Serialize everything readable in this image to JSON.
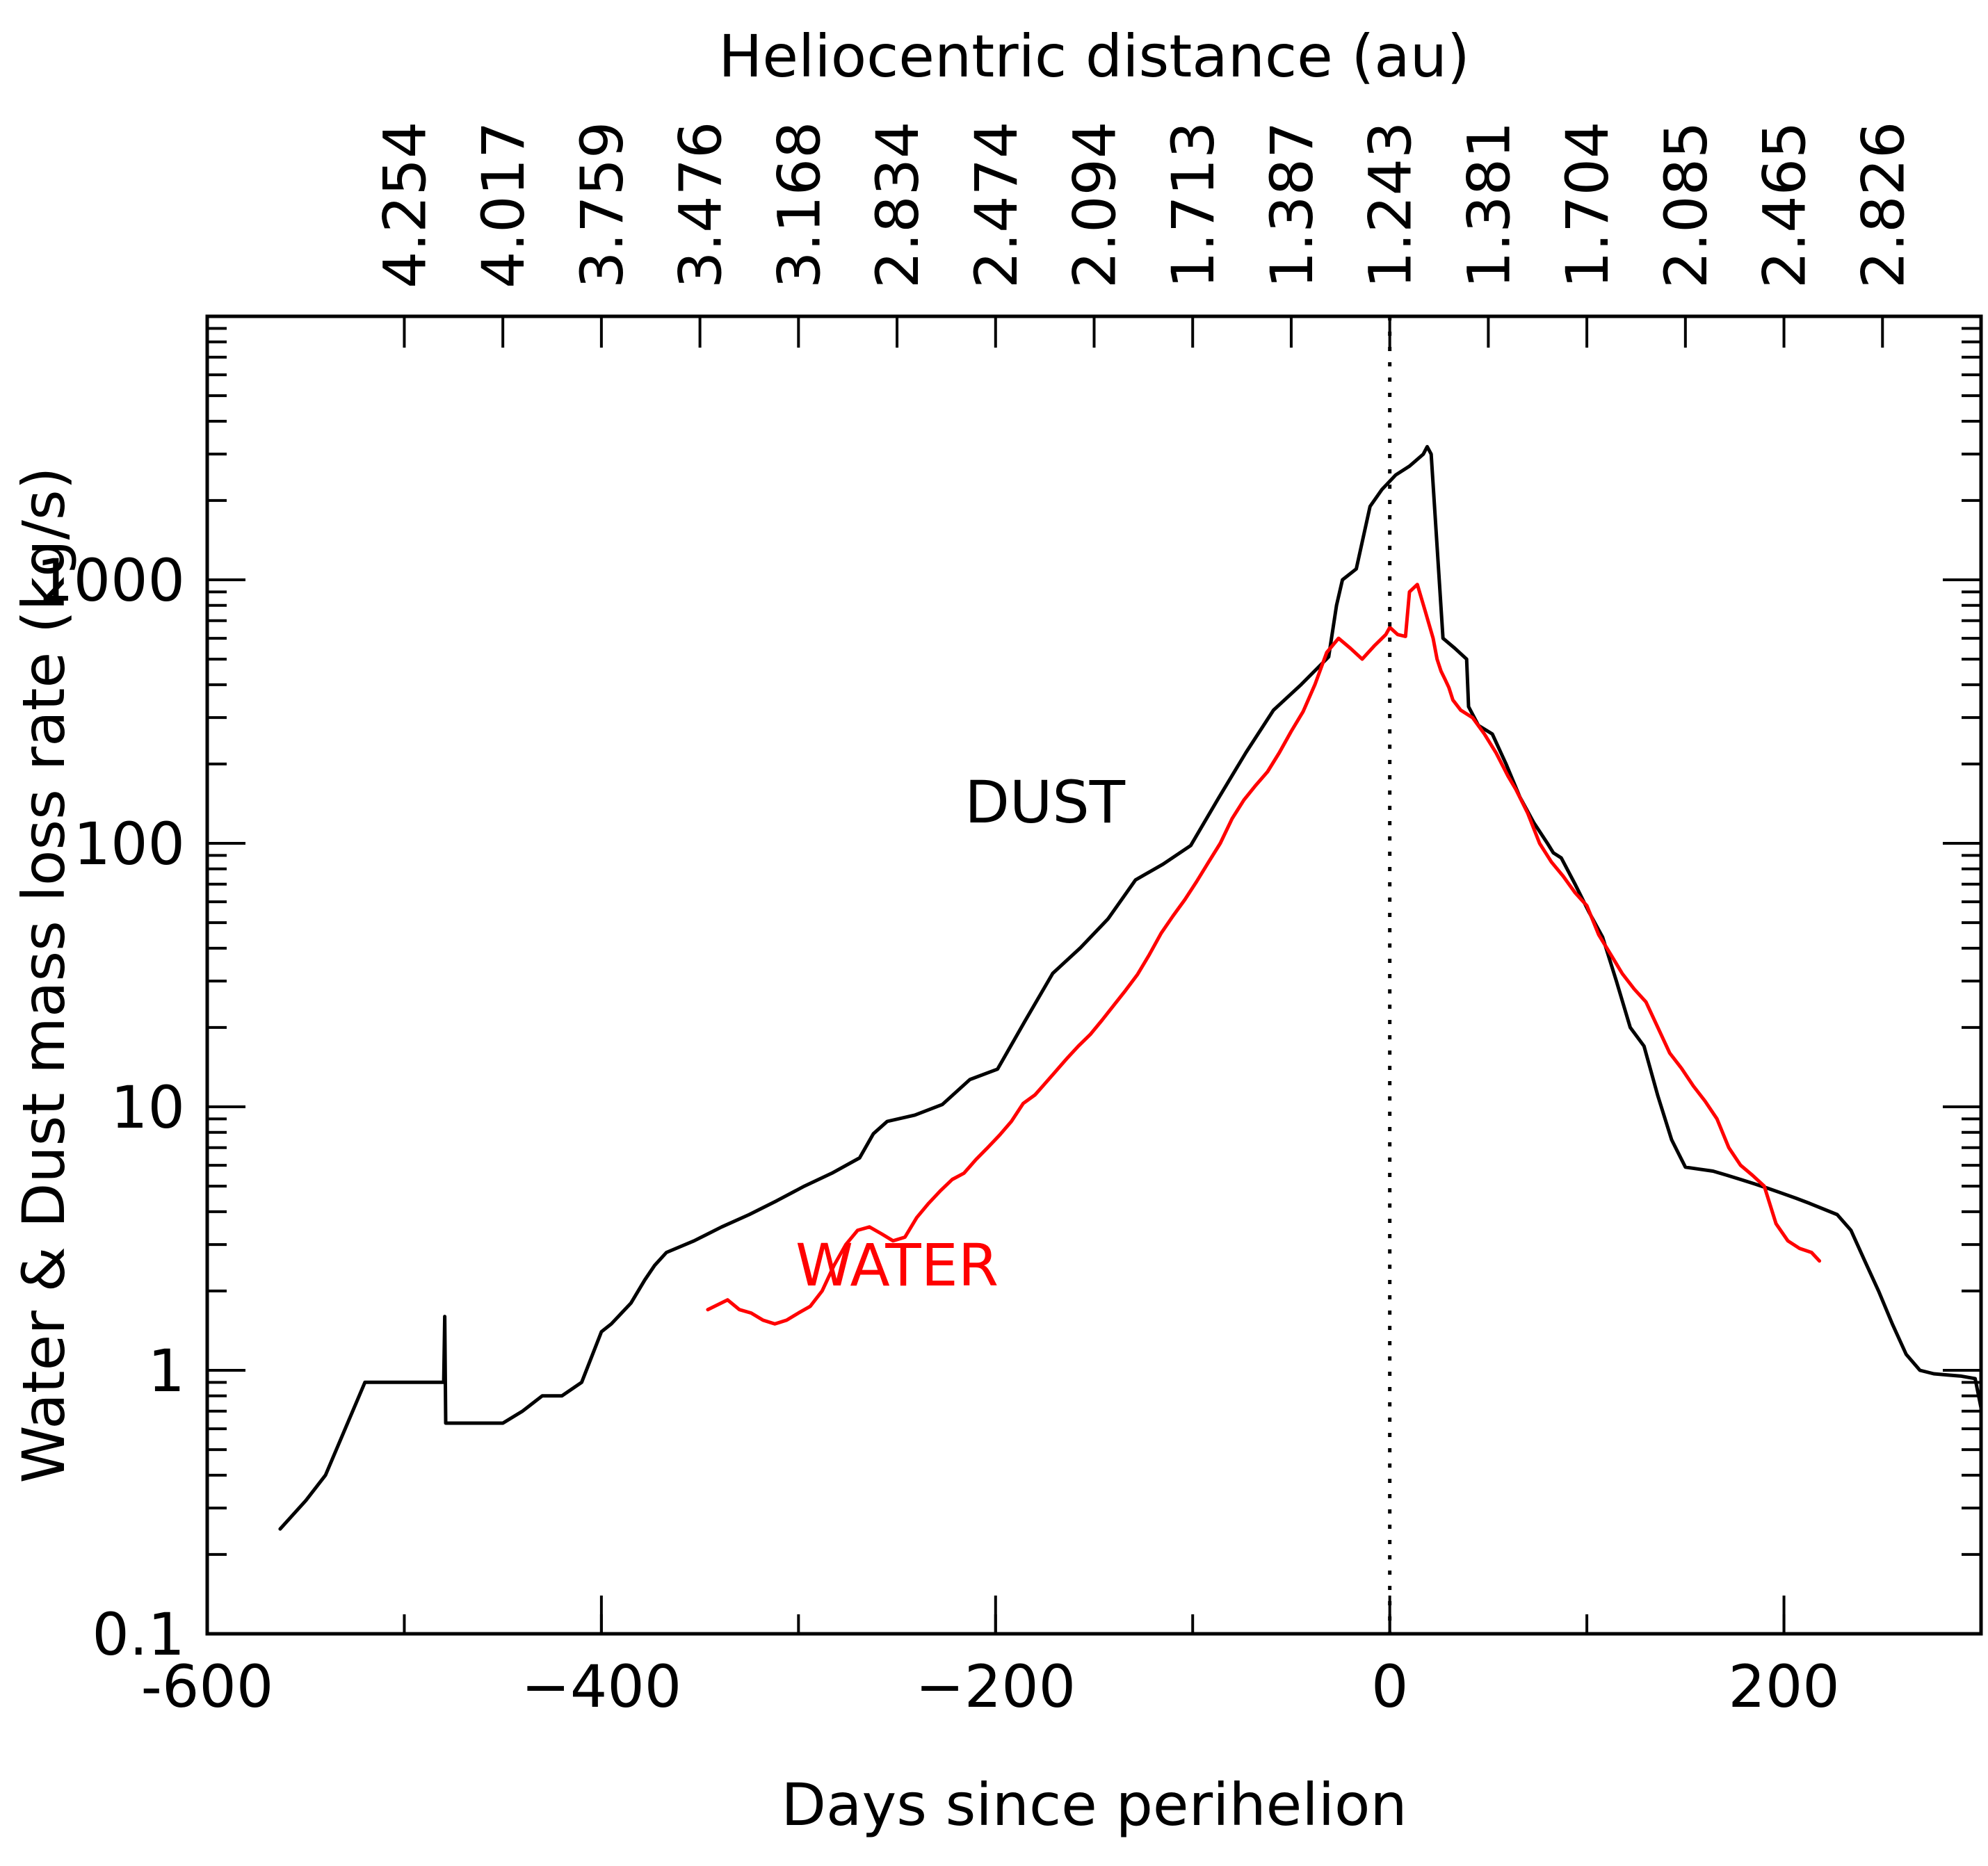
{
  "chart_data": {
    "type": "line",
    "title": "",
    "xlabel": "Days since perihelion",
    "ylabel": "Water & Dust mass loss rate (kg/s)",
    "top_axis_label": "Heliocentric distance (au)",
    "xlim": [
      -600,
      300
    ],
    "ylim": [
      0.1,
      10000
    ],
    "yscale": "log",
    "x_ticks": [
      -600,
      -400,
      -200,
      0,
      200
    ],
    "x_tick_labels": [
      "-600",
      "−400",
      "−200",
      "0",
      "200"
    ],
    "y_ticks": [
      0.1,
      1,
      10,
      100,
      1000
    ],
    "y_tick_labels": [
      "0.1",
      "1",
      "10",
      "100",
      "1000"
    ],
    "top_ticks": [
      {
        "x": -500,
        "label": "4.254"
      },
      {
        "x": -450,
        "label": "4.017"
      },
      {
        "x": -400,
        "label": "3.759"
      },
      {
        "x": -350,
        "label": "3.476"
      },
      {
        "x": -300,
        "label": "3.168"
      },
      {
        "x": -250,
        "label": "2.834"
      },
      {
        "x": -200,
        "label": "2.474"
      },
      {
        "x": -150,
        "label": "2.094"
      },
      {
        "x": -100,
        "label": "1.713"
      },
      {
        "x": -50,
        "label": "1.387"
      },
      {
        "x": 0,
        "label": "1.243"
      },
      {
        "x": 50,
        "label": "1.381"
      },
      {
        "x": 100,
        "label": "1.704"
      },
      {
        "x": 150,
        "label": "2.085"
      },
      {
        "x": 200,
        "label": "2.465"
      },
      {
        "x": 250,
        "label": "2.826"
      }
    ],
    "perihelion_line_x": 0,
    "series": [
      {
        "name": "DUST",
        "label": "DUST",
        "color": "#000000",
        "label_at": [
          -175,
          120
        ],
        "x": [
          -563,
          -550,
          -540,
          -520,
          -500,
          -480,
          -479.5,
          -479,
          -470,
          -450,
          -440,
          -430,
          -420,
          -410,
          -400,
          -395,
          -385,
          -378,
          -373,
          -367,
          -353,
          -339,
          -325,
          -311,
          -297,
          -283,
          -269,
          -262,
          -255,
          -241,
          -227,
          -213,
          -199,
          -185,
          -171,
          -157,
          -143,
          -129,
          -115,
          -101,
          -87,
          -73,
          -59,
          -45,
          -31,
          -27,
          -24,
          -17,
          -10,
          -4,
          3,
          10,
          17,
          19,
          21,
          27,
          33,
          39,
          40,
          45,
          52,
          59,
          66,
          73,
          80,
          83,
          87,
          94,
          101,
          108,
          115,
          122,
          129,
          136,
          143,
          150,
          157,
          164,
          171,
          178,
          185,
          192,
          199,
          206,
          213,
          227,
          234,
          241,
          248,
          255,
          262,
          269,
          276,
          283,
          290,
          297,
          300
        ],
        "values": [
          0.25,
          0.32,
          0.4,
          0.9,
          0.9,
          0.9,
          1.6,
          0.63,
          0.63,
          0.63,
          0.7,
          0.8,
          0.8,
          0.9,
          1.4,
          1.5,
          1.8,
          2.2,
          2.5,
          2.8,
          3.1,
          3.5,
          3.9,
          4.4,
          5.0,
          5.6,
          6.4,
          7.9,
          8.8,
          9.3,
          10.2,
          12.7,
          13.9,
          21.2,
          32.1,
          40.1,
          51.6,
          72.6,
          83.4,
          98.1,
          148.0,
          221.0,
          320.0,
          400.0,
          510.0,
          800.0,
          1000.0,
          1100.0,
          1900.0,
          2200.0,
          2500.0,
          2700.0,
          3000.0,
          3200.0,
          3000.0,
          600.0,
          550.0,
          500.0,
          330.0,
          280.0,
          260.0,
          200.0,
          150.0,
          120.0,
          100.0,
          92.0,
          88.0,
          70.0,
          55.0,
          44.0,
          30.0,
          20.0,
          17.0,
          11.0,
          7.5,
          5.9,
          5.8,
          5.7,
          5.5,
          5.3,
          5.1,
          4.9,
          4.7,
          4.5,
          4.3,
          3.9,
          3.4,
          2.6,
          2.0,
          1.5,
          1.15,
          1.0,
          0.97,
          0.96,
          0.95,
          0.93,
          0.72
        ]
      },
      {
        "name": "WATER",
        "label": "WATER",
        "color": "#ff0000",
        "label_at": [
          -250,
          2.1
        ],
        "x": [
          -346,
          -336,
          -330,
          -324,
          -318,
          -312,
          -306,
          -300,
          -294,
          -288,
          -282,
          -276,
          -270,
          -264,
          -258,
          -252,
          -246,
          -240,
          -234,
          -228,
          -222,
          -216,
          -210,
          -204,
          -198,
          -192,
          -186,
          -180,
          -176,
          -170,
          -164,
          -158,
          -152,
          -146,
          -140,
          -134,
          -128,
          -122,
          -116,
          -110,
          -104,
          -98,
          -92,
          -86,
          -80,
          -74,
          -68,
          -62,
          -56,
          -50,
          -44,
          -38,
          -32,
          -26,
          -20,
          -14,
          -8,
          -2,
          0,
          4,
          8,
          10,
          14,
          18,
          22,
          24,
          26,
          28,
          30,
          32,
          36,
          42,
          48,
          54,
          60,
          64,
          70,
          76,
          82,
          88,
          94,
          100,
          106,
          112,
          118,
          124,
          130,
          136,
          142,
          148,
          154,
          160,
          166,
          172,
          178,
          184,
          190,
          196,
          202,
          208,
          214,
          218
        ],
        "values": [
          1.7,
          1.85,
          1.7,
          1.65,
          1.55,
          1.5,
          1.55,
          1.65,
          1.75,
          2.0,
          2.5,
          3.0,
          3.4,
          3.5,
          3.3,
          3.1,
          3.2,
          3.8,
          4.3,
          4.8,
          5.3,
          5.6,
          6.3,
          7.0,
          7.8,
          8.8,
          10.3,
          11.1,
          12.0,
          13.5,
          15.2,
          17.0,
          18.8,
          21.3,
          24.3,
          27.7,
          31.8,
          37.8,
          45.6,
          53.0,
          61.1,
          71.6,
          84.7,
          100.0,
          124.0,
          146.0,
          166.0,
          187.0,
          221.0,
          266.0,
          316.0,
          400.0,
          530.0,
          600.0,
          550.0,
          500.0,
          560.0,
          620.0,
          660.0,
          620.0,
          610.0,
          900.0,
          960.0,
          760.0,
          600.0,
          500.0,
          450.0,
          420.0,
          390.0,
          350.0,
          320.0,
          300.0,
          260.0,
          220.0,
          180.0,
          160.0,
          130.0,
          100.0,
          85.0,
          75.0,
          65.0,
          58.0,
          45.0,
          38.0,
          32.0,
          28.0,
          25.0,
          20.0,
          16.0,
          14.0,
          12.0,
          10.5,
          9.0,
          7.0,
          6.0,
          5.5,
          5.0,
          3.6,
          3.1,
          2.9,
          2.8,
          2.6
        ]
      }
    ]
  }
}
